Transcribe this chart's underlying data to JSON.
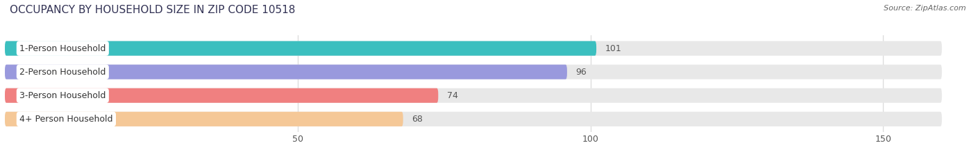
{
  "title": "OCCUPANCY BY HOUSEHOLD SIZE IN ZIP CODE 10518",
  "source": "Source: ZipAtlas.com",
  "categories": [
    "1-Person Household",
    "2-Person Household",
    "3-Person Household",
    "4+ Person Household"
  ],
  "values": [
    101,
    96,
    74,
    68
  ],
  "bar_colors": [
    "#3bbfbf",
    "#9999dd",
    "#f08080",
    "#f5c897"
  ],
  "bar_bg_color": "#e8e8e8",
  "xlim": [
    0,
    160
  ],
  "xticks": [
    50,
    100,
    150
  ],
  "figsize": [
    14.06,
    2.33
  ],
  "dpi": 100,
  "title_fontsize": 11,
  "label_fontsize": 9,
  "value_fontsize": 9,
  "source_fontsize": 8,
  "bar_height": 0.62,
  "bg_color": "#ffffff"
}
